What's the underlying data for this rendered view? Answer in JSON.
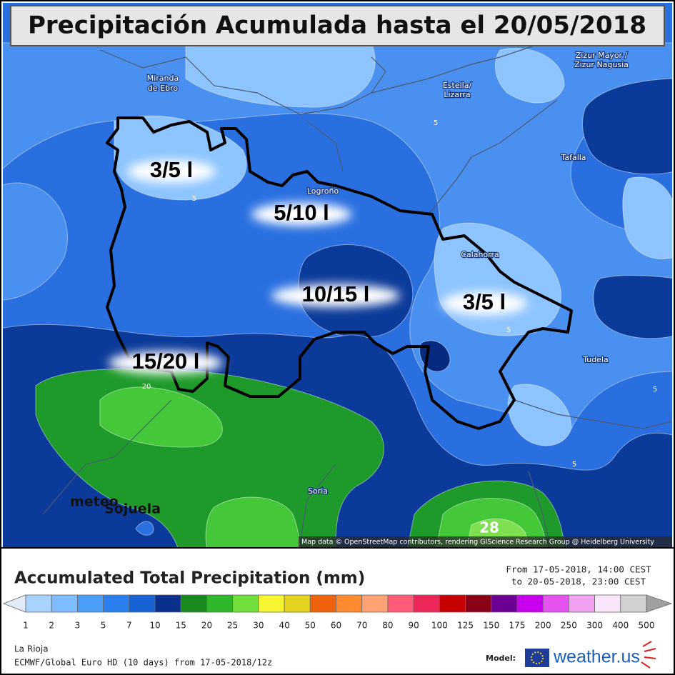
{
  "title": "Precipitación Acumulada hasta el 20/05/2018",
  "map": {
    "places": [
      [
        "Miranda",
        "de Ebro"
      ],
      [
        "Estella/",
        "Lizarra"
      ],
      [
        "Zizur Mayor /",
        "Zizur Nagusia"
      ],
      [
        "Tafalla"
      ],
      [
        "Logroño"
      ],
      [
        "Calahorra"
      ],
      [
        "Tudela"
      ],
      [
        "Soria"
      ]
    ],
    "contour_labels": [
      5,
      5,
      5,
      5,
      5,
      20,
      28
    ],
    "regions": [
      "3/5 l",
      "5/10 l",
      "10/15 l",
      "3/5 l",
      "15/20 l"
    ],
    "watermark": [
      "meteo",
      "Sojuela"
    ],
    "attribution": "Map data © OpenStreetMap contributors, rendering GIScience Research Group @ Heidelberg University"
  },
  "legend": {
    "title": "Accumulated Total Precipitation (mm)",
    "period": [
      "From 17-05-2018, 14:00 CEST",
      "to 20-05-2018, 23:00 CEST"
    ],
    "ticks": [
      1,
      2,
      3,
      5,
      7,
      10,
      15,
      20,
      25,
      30,
      40,
      50,
      60,
      70,
      80,
      90,
      100,
      125,
      150,
      175,
      200,
      250,
      300,
      400,
      500
    ],
    "colors": [
      "#a9d3ff",
      "#7ebcff",
      "#4c9ef6",
      "#2b80ef",
      "#1763d6",
      "#0b2f8c",
      "#1b8a1e",
      "#2fb82c",
      "#72e03c",
      "#f5f532",
      "#e3d21e",
      "#ef620b",
      "#ff8a30",
      "#ffa374",
      "#ff5c7a",
      "#ee275a",
      "#c60000",
      "#8a0016",
      "#6c0094",
      "#c800ee",
      "#e452ef",
      "#f0a2f0",
      "#fae6fa",
      "#d2d2d2"
    ],
    "below_color": "#e3ebf6",
    "above_color": "#a0a0a0"
  },
  "footer": {
    "region": "La Rioja",
    "model_run": "ECMWF/Global Euro HD (10 days) from 17-05-2018/12z",
    "model_label": "Model:",
    "brand": "weather.us"
  }
}
